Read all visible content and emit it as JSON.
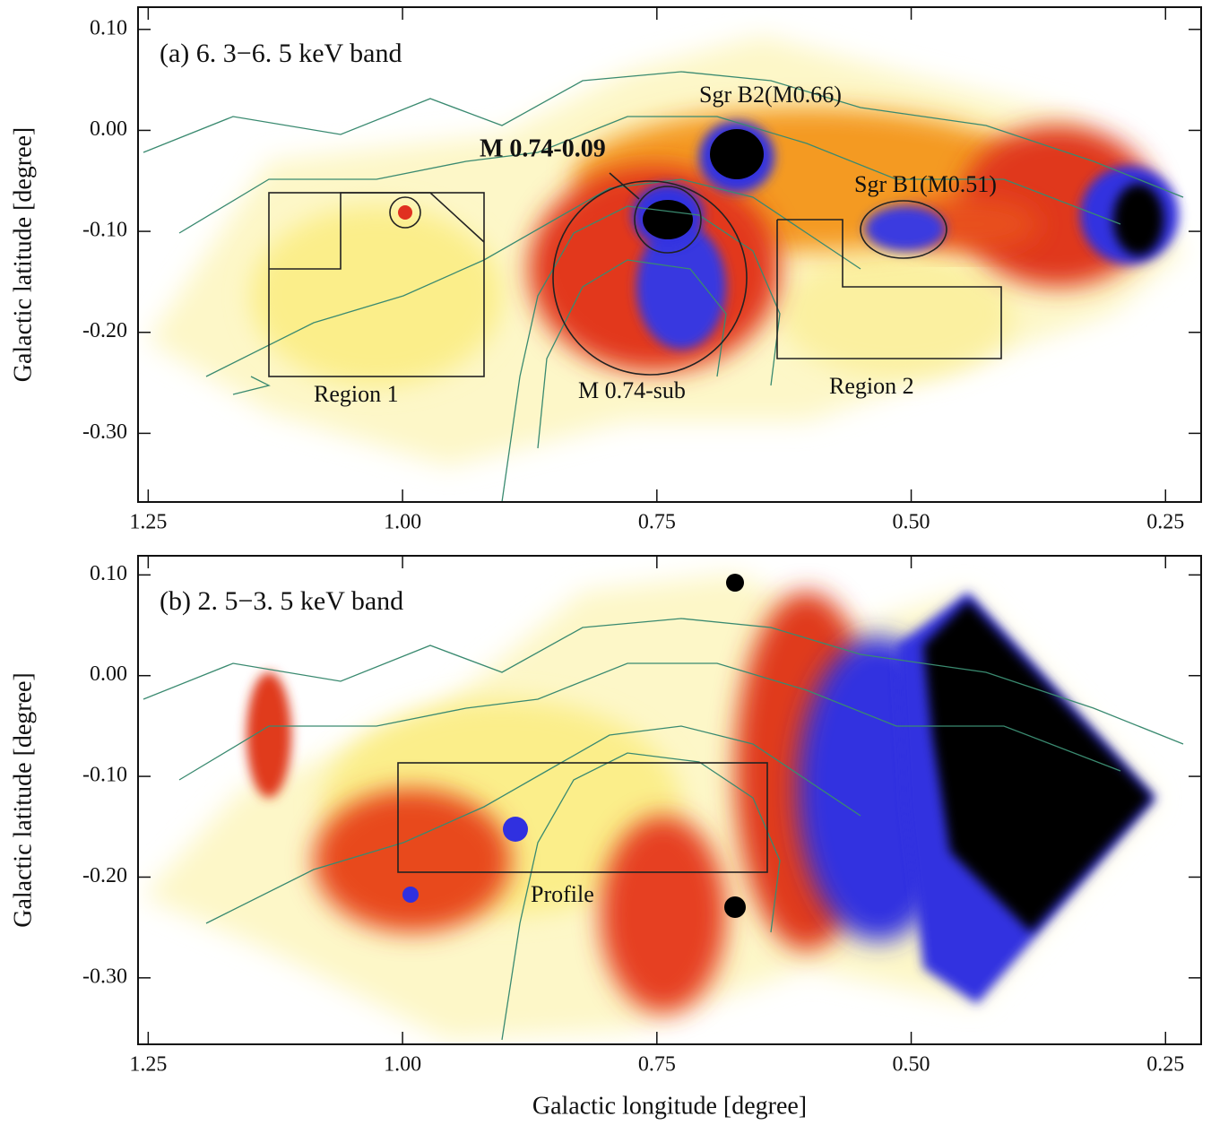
{
  "chart_data": [
    {
      "type": "image",
      "annotations": [
        "(a) 6. 3−6. 5 keV band",
        "Sgr B2(M0.66)",
        "M 0.74-0.09",
        "Sgr B1(M0.51)",
        "Region 1",
        "M 0.74-sub",
        "Region 2"
      ],
      "y_label": "Galactic latitude [degree]",
      "xlim": [
        1.26,
        0.215
      ],
      "ylim": [
        -0.368,
        0.122
      ],
      "xticks": [
        {
          "value": 1.25,
          "label": "1.25"
        },
        {
          "value": 1.0,
          "label": "1.00"
        },
        {
          "value": 0.75,
          "label": "0.75"
        },
        {
          "value": 0.5,
          "label": "0.50"
        },
        {
          "value": 0.25,
          "label": "0.25"
        }
      ],
      "yticks": [
        {
          "value": 0.1,
          "label": "0.10"
        },
        {
          "value": 0,
          "label": "0.00"
        },
        {
          "value": -0.1,
          "label": "-0.10"
        },
        {
          "value": -0.2,
          "label": "-0.20"
        },
        {
          "value": -0.3,
          "label": "-0.30"
        }
      ]
    },
    {
      "type": "image",
      "annotations": [
        "(b) 2. 5−3. 5 keV band",
        "Profile"
      ],
      "y_label": "Galactic latitude [degree]",
      "x_label": "Galactic longitude [degree]",
      "xlim": [
        1.26,
        0.215
      ],
      "ylim": [
        -0.366,
        0.119
      ],
      "xticks": [
        {
          "value": 1.25,
          "label": "1.25"
        },
        {
          "value": 1.0,
          "label": "1.00"
        },
        {
          "value": 0.75,
          "label": "0.75"
        },
        {
          "value": 0.5,
          "label": "0.50"
        },
        {
          "value": 0.25,
          "label": "0.25"
        }
      ],
      "yticks": [
        {
          "value": 0.1,
          "label": "0.10"
        },
        {
          "value": 0,
          "label": "0.00"
        },
        {
          "value": -0.1,
          "label": "-0.10"
        },
        {
          "value": -0.2,
          "label": "-0.20"
        },
        {
          "value": -0.3,
          "label": "-0.30"
        }
      ]
    }
  ]
}
